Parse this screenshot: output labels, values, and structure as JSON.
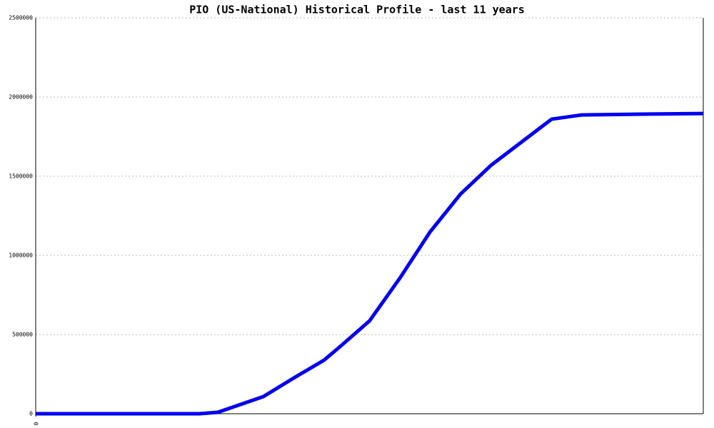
{
  "chart_data": {
    "type": "line",
    "title": "PIO (US-National) Historical Profile - last 11 years",
    "x": [
      0,
      2.7,
      3,
      3.75,
      4.25,
      4.75,
      5,
      5.5,
      6,
      6.5,
      7,
      7.5,
      8.5,
      9,
      10,
      11
    ],
    "series": [
      {
        "name": "PIO",
        "color": "#0000ee",
        "values": [
          0,
          0,
          9000,
          108000,
          225000,
          338000,
          419000,
          586000,
          856000,
          1149000,
          1387000,
          1568000,
          1860000,
          1887000,
          1892000,
          1896000
        ]
      }
    ],
    "xlim": [
      0,
      11
    ],
    "xticks": [
      0
    ],
    "ylim": [
      0,
      2500000
    ],
    "yticks": [
      0,
      500000,
      1000000,
      1500000,
      2000000,
      2500000
    ],
    "grid": true
  }
}
